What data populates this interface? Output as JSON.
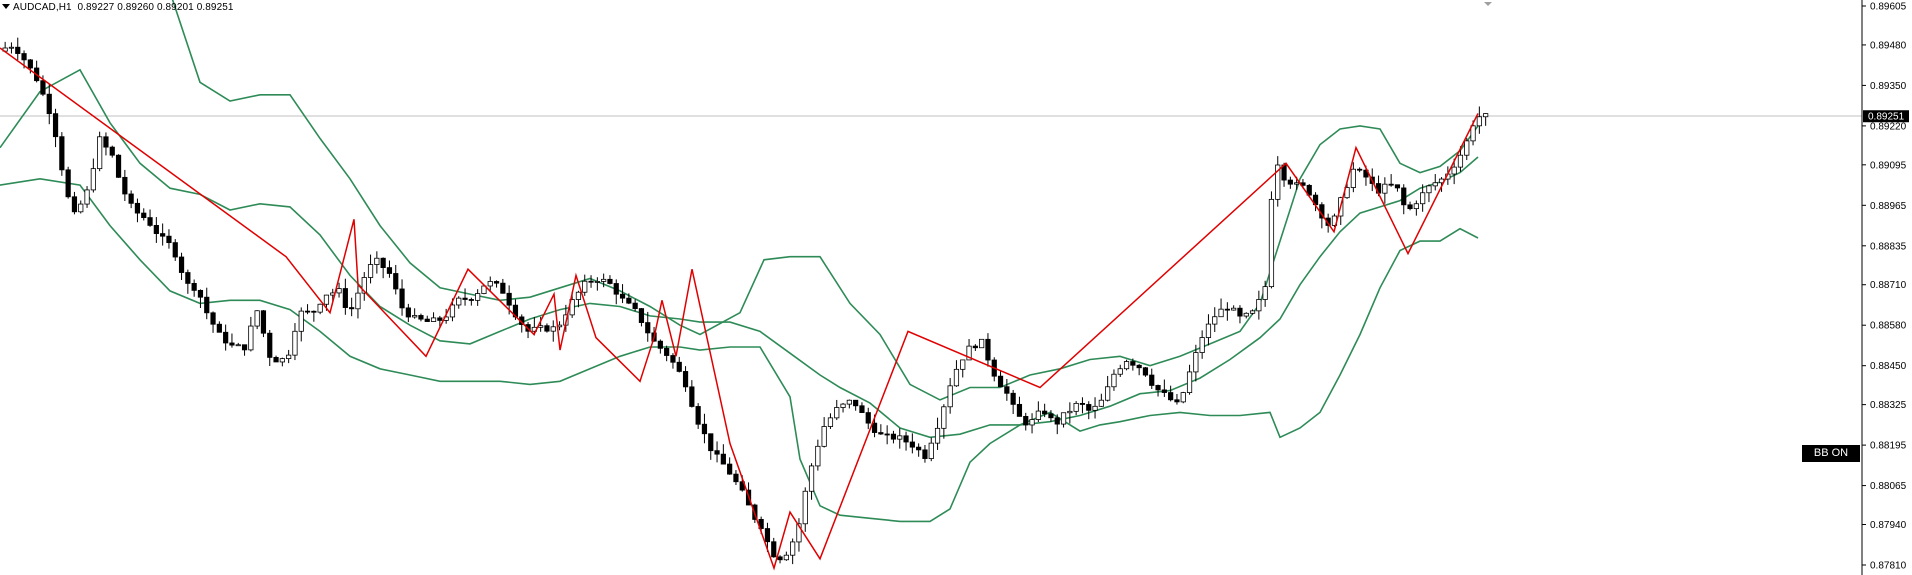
{
  "header": {
    "symbol": "AUDCAD,H1",
    "open": "0.89227",
    "high": "0.89260",
    "low": "0.89201",
    "close": "0.89251"
  },
  "indicator_button": {
    "label": "BB ON"
  },
  "chart_data": {
    "type": "candlestick",
    "symbol": "AUDCAD",
    "timeframe": "H1",
    "current_price": "0.89251",
    "y_axis_ticks": [
      "0.89605",
      "0.89480",
      "0.89350",
      "0.89220",
      "0.89095",
      "0.88965",
      "0.88835",
      "0.88710",
      "0.88580",
      "0.88450",
      "0.88325",
      "0.88195",
      "0.88065",
      "0.87940",
      "0.87810"
    ],
    "ylim": [
      0.8781,
      0.89605
    ],
    "grid": false,
    "bars_count": 236,
    "close_points": [
      [
        0,
        0.8946
      ],
      [
        16,
        0.8948
      ],
      [
        24,
        0.8945
      ],
      [
        40,
        0.8937
      ],
      [
        56,
        0.8924
      ],
      [
        70,
        0.89
      ],
      [
        78,
        0.8893
      ],
      [
        92,
        0.8902
      ],
      [
        102,
        0.8918
      ],
      [
        116,
        0.8912
      ],
      [
        124,
        0.8903
      ],
      [
        136,
        0.8895
      ],
      [
        150,
        0.8892
      ],
      [
        164,
        0.8886
      ],
      [
        176,
        0.8883
      ],
      [
        190,
        0.8871
      ],
      [
        200,
        0.887
      ],
      [
        210,
        0.8862
      ],
      [
        222,
        0.8855
      ],
      [
        236,
        0.8851
      ],
      [
        248,
        0.8851
      ],
      [
        260,
        0.8863
      ],
      [
        274,
        0.8847
      ],
      [
        290,
        0.8847
      ],
      [
        302,
        0.8862
      ],
      [
        316,
        0.8862
      ],
      [
        328,
        0.8868
      ],
      [
        344,
        0.8869
      ],
      [
        352,
        0.8861
      ],
      [
        368,
        0.8874
      ],
      [
        378,
        0.8879
      ],
      [
        392,
        0.8875
      ],
      [
        406,
        0.8863
      ],
      [
        418,
        0.886
      ],
      [
        432,
        0.8859
      ],
      [
        446,
        0.886
      ],
      [
        462,
        0.8866
      ],
      [
        476,
        0.8867
      ],
      [
        490,
        0.8872
      ],
      [
        504,
        0.887
      ],
      [
        518,
        0.8862
      ],
      [
        530,
        0.8856
      ],
      [
        546,
        0.8857
      ],
      [
        560,
        0.8857
      ],
      [
        576,
        0.8866
      ],
      [
        590,
        0.8872
      ],
      [
        602,
        0.8873
      ],
      [
        614,
        0.8871
      ],
      [
        626,
        0.8866
      ],
      [
        640,
        0.8862
      ],
      [
        656,
        0.8853
      ],
      [
        672,
        0.8848
      ],
      [
        688,
        0.884
      ],
      [
        700,
        0.8828
      ],
      [
        716,
        0.8817
      ],
      [
        730,
        0.8812
      ],
      [
        744,
        0.8805
      ],
      [
        756,
        0.8797
      ],
      [
        766,
        0.8793
      ],
      [
        774,
        0.8785
      ],
      [
        786,
        0.8783
      ],
      [
        800,
        0.8791
      ],
      [
        812,
        0.881
      ],
      [
        826,
        0.8825
      ],
      [
        840,
        0.8831
      ],
      [
        856,
        0.8834
      ],
      [
        870,
        0.8827
      ],
      [
        886,
        0.8822
      ],
      [
        900,
        0.8822
      ],
      [
        914,
        0.882
      ],
      [
        928,
        0.8816
      ],
      [
        942,
        0.8827
      ],
      [
        956,
        0.8842
      ],
      [
        970,
        0.885
      ],
      [
        984,
        0.8853
      ],
      [
        998,
        0.8842
      ],
      [
        1010,
        0.8836
      ],
      [
        1020,
        0.8829
      ],
      [
        1032,
        0.8826
      ],
      [
        1046,
        0.8831
      ],
      [
        1058,
        0.8826
      ],
      [
        1070,
        0.883
      ],
      [
        1082,
        0.8833
      ],
      [
        1094,
        0.883
      ],
      [
        1106,
        0.8834
      ],
      [
        1118,
        0.8843
      ],
      [
        1130,
        0.8847
      ],
      [
        1146,
        0.8844
      ],
      [
        1158,
        0.8838
      ],
      [
        1170,
        0.8835
      ],
      [
        1182,
        0.8832
      ],
      [
        1194,
        0.8844
      ],
      [
        1206,
        0.8855
      ],
      [
        1220,
        0.8862
      ],
      [
        1232,
        0.8864
      ],
      [
        1244,
        0.886
      ],
      [
        1256,
        0.8862
      ],
      [
        1268,
        0.8869
      ],
      [
        1274,
        0.8898
      ],
      [
        1280,
        0.8911
      ],
      [
        1286,
        0.8906
      ],
      [
        1298,
        0.8903
      ],
      [
        1310,
        0.8902
      ],
      [
        1322,
        0.8895
      ],
      [
        1334,
        0.8889
      ],
      [
        1344,
        0.8898
      ],
      [
        1356,
        0.8908
      ],
      [
        1368,
        0.8906
      ],
      [
        1380,
        0.8901
      ],
      [
        1392,
        0.8903
      ],
      [
        1400,
        0.8902
      ],
      [
        1410,
        0.8894
      ],
      [
        1420,
        0.8898
      ],
      [
        1434,
        0.8903
      ],
      [
        1446,
        0.8905
      ],
      [
        1456,
        0.8909
      ],
      [
        1466,
        0.8914
      ],
      [
        1474,
        0.892
      ],
      [
        1478,
        0.8925
      ]
    ],
    "bollinger_bands": {
      "period_label": "BB",
      "upper": [
        [
          0,
          0.8967
        ],
        [
          60,
          0.8966
        ],
        [
          120,
          0.8968
        ],
        [
          170,
          0.8965
        ],
        [
          200,
          0.8936
        ],
        [
          230,
          0.893
        ],
        [
          260,
          0.8932
        ],
        [
          290,
          0.8932
        ],
        [
          320,
          0.8918
        ],
        [
          350,
          0.8905
        ],
        [
          380,
          0.889
        ],
        [
          410,
          0.8878
        ],
        [
          440,
          0.887
        ],
        [
          470,
          0.8868
        ],
        [
          500,
          0.8866
        ],
        [
          530,
          0.8867
        ],
        [
          560,
          0.887
        ],
        [
          590,
          0.8873
        ],
        [
          620,
          0.8869
        ],
        [
          650,
          0.8864
        ],
        [
          680,
          0.8858
        ],
        [
          700,
          0.8855
        ],
        [
          740,
          0.8862
        ],
        [
          764,
          0.8879
        ],
        [
          790,
          0.888
        ],
        [
          820,
          0.888
        ],
        [
          850,
          0.8865
        ],
        [
          880,
          0.8855
        ],
        [
          910,
          0.8839
        ],
        [
          940,
          0.8834
        ],
        [
          970,
          0.8838
        ],
        [
          1000,
          0.8838
        ],
        [
          1030,
          0.8842
        ],
        [
          1060,
          0.8844
        ],
        [
          1090,
          0.8847
        ],
        [
          1120,
          0.8848
        ],
        [
          1150,
          0.8845
        ],
        [
          1180,
          0.8848
        ],
        [
          1210,
          0.8852
        ],
        [
          1240,
          0.8856
        ],
        [
          1260,
          0.8865
        ],
        [
          1280,
          0.8885
        ],
        [
          1300,
          0.8905
        ],
        [
          1320,
          0.8916
        ],
        [
          1340,
          0.8921
        ],
        [
          1360,
          0.8922
        ],
        [
          1380,
          0.8921
        ],
        [
          1400,
          0.891
        ],
        [
          1420,
          0.8907
        ],
        [
          1440,
          0.8909
        ],
        [
          1460,
          0.8914
        ],
        [
          1478,
          0.8922
        ]
      ],
      "middle": [
        [
          0,
          0.8915
        ],
        [
          40,
          0.8933
        ],
        [
          80,
          0.894
        ],
        [
          110,
          0.8923
        ],
        [
          140,
          0.891
        ],
        [
          170,
          0.8902
        ],
        [
          200,
          0.89
        ],
        [
          230,
          0.8895
        ],
        [
          260,
          0.8897
        ],
        [
          290,
          0.8896
        ],
        [
          320,
          0.8887
        ],
        [
          350,
          0.8874
        ],
        [
          380,
          0.8864
        ],
        [
          410,
          0.8858
        ],
        [
          440,
          0.8853
        ],
        [
          470,
          0.8852
        ],
        [
          500,
          0.8856
        ],
        [
          530,
          0.886
        ],
        [
          560,
          0.8863
        ],
        [
          590,
          0.8865
        ],
        [
          620,
          0.8864
        ],
        [
          650,
          0.8861
        ],
        [
          680,
          0.886
        ],
        [
          700,
          0.8859
        ],
        [
          730,
          0.8859
        ],
        [
          760,
          0.8856
        ],
        [
          790,
          0.8849
        ],
        [
          820,
          0.8842
        ],
        [
          840,
          0.8838
        ],
        [
          870,
          0.8833
        ],
        [
          900,
          0.8825
        ],
        [
          930,
          0.8822
        ],
        [
          960,
          0.8823
        ],
        [
          990,
          0.8826
        ],
        [
          1020,
          0.8826
        ],
        [
          1050,
          0.8827
        ],
        [
          1080,
          0.8829
        ],
        [
          1110,
          0.8832
        ],
        [
          1140,
          0.8836
        ],
        [
          1170,
          0.8837
        ],
        [
          1200,
          0.8841
        ],
        [
          1230,
          0.8847
        ],
        [
          1260,
          0.8854
        ],
        [
          1280,
          0.886
        ],
        [
          1300,
          0.8871
        ],
        [
          1320,
          0.888
        ],
        [
          1340,
          0.8888
        ],
        [
          1360,
          0.8894
        ],
        [
          1380,
          0.8896
        ],
        [
          1400,
          0.8898
        ],
        [
          1420,
          0.8902
        ],
        [
          1440,
          0.8904
        ],
        [
          1460,
          0.8907
        ],
        [
          1478,
          0.8912
        ]
      ],
      "lower": [
        [
          0,
          0.8903
        ],
        [
          40,
          0.8905
        ],
        [
          80,
          0.8903
        ],
        [
          110,
          0.889
        ],
        [
          140,
          0.8879
        ],
        [
          170,
          0.8869
        ],
        [
          200,
          0.8865
        ],
        [
          230,
          0.8866
        ],
        [
          260,
          0.8866
        ],
        [
          290,
          0.8863
        ],
        [
          320,
          0.8856
        ],
        [
          350,
          0.8848
        ],
        [
          380,
          0.8844
        ],
        [
          410,
          0.8842
        ],
        [
          440,
          0.884
        ],
        [
          470,
          0.884
        ],
        [
          500,
          0.884
        ],
        [
          530,
          0.8839
        ],
        [
          560,
          0.884
        ],
        [
          590,
          0.8844
        ],
        [
          620,
          0.8848
        ],
        [
          650,
          0.8851
        ],
        [
          680,
          0.8851
        ],
        [
          700,
          0.885
        ],
        [
          730,
          0.8851
        ],
        [
          760,
          0.8851
        ],
        [
          790,
          0.8835
        ],
        [
          800,
          0.8815
        ],
        [
          820,
          0.88
        ],
        [
          840,
          0.8797
        ],
        [
          870,
          0.8796
        ],
        [
          900,
          0.8795
        ],
        [
          930,
          0.8795
        ],
        [
          950,
          0.8799
        ],
        [
          970,
          0.8814
        ],
        [
          990,
          0.882
        ],
        [
          1020,
          0.8826
        ],
        [
          1050,
          0.883
        ],
        [
          1080,
          0.8824
        ],
        [
          1100,
          0.8826
        ],
        [
          1120,
          0.8827
        ],
        [
          1150,
          0.8829
        ],
        [
          1180,
          0.883
        ],
        [
          1210,
          0.8829
        ],
        [
          1240,
          0.8829
        ],
        [
          1270,
          0.883
        ],
        [
          1280,
          0.8822
        ],
        [
          1300,
          0.8825
        ],
        [
          1320,
          0.883
        ],
        [
          1340,
          0.8842
        ],
        [
          1360,
          0.8855
        ],
        [
          1380,
          0.887
        ],
        [
          1400,
          0.8882
        ],
        [
          1420,
          0.8885
        ],
        [
          1440,
          0.8885
        ],
        [
          1460,
          0.8889
        ],
        [
          1478,
          0.8886
        ]
      ]
    },
    "zigzag": [
      [
        0,
        0.8947
      ],
      [
        286,
        0.888
      ],
      [
        330,
        0.8862
      ],
      [
        354,
        0.8892
      ],
      [
        358,
        0.8871
      ],
      [
        426,
        0.8848
      ],
      [
        468,
        0.8876
      ],
      [
        534,
        0.8855
      ],
      [
        554,
        0.8868
      ],
      [
        560,
        0.885
      ],
      [
        576,
        0.8874
      ],
      [
        596,
        0.8854
      ],
      [
        640,
        0.884
      ],
      [
        654,
        0.8854
      ],
      [
        662,
        0.8866
      ],
      [
        676,
        0.8848
      ],
      [
        692,
        0.8876
      ],
      [
        730,
        0.882
      ],
      [
        774,
        0.878
      ],
      [
        790,
        0.8798
      ],
      [
        820,
        0.8783
      ],
      [
        908,
        0.8856
      ],
      [
        1040,
        0.8838
      ],
      [
        1286,
        0.891
      ],
      [
        1334,
        0.8888
      ],
      [
        1356,
        0.8915
      ],
      [
        1408,
        0.8881
      ],
      [
        1478,
        0.8926
      ]
    ]
  }
}
